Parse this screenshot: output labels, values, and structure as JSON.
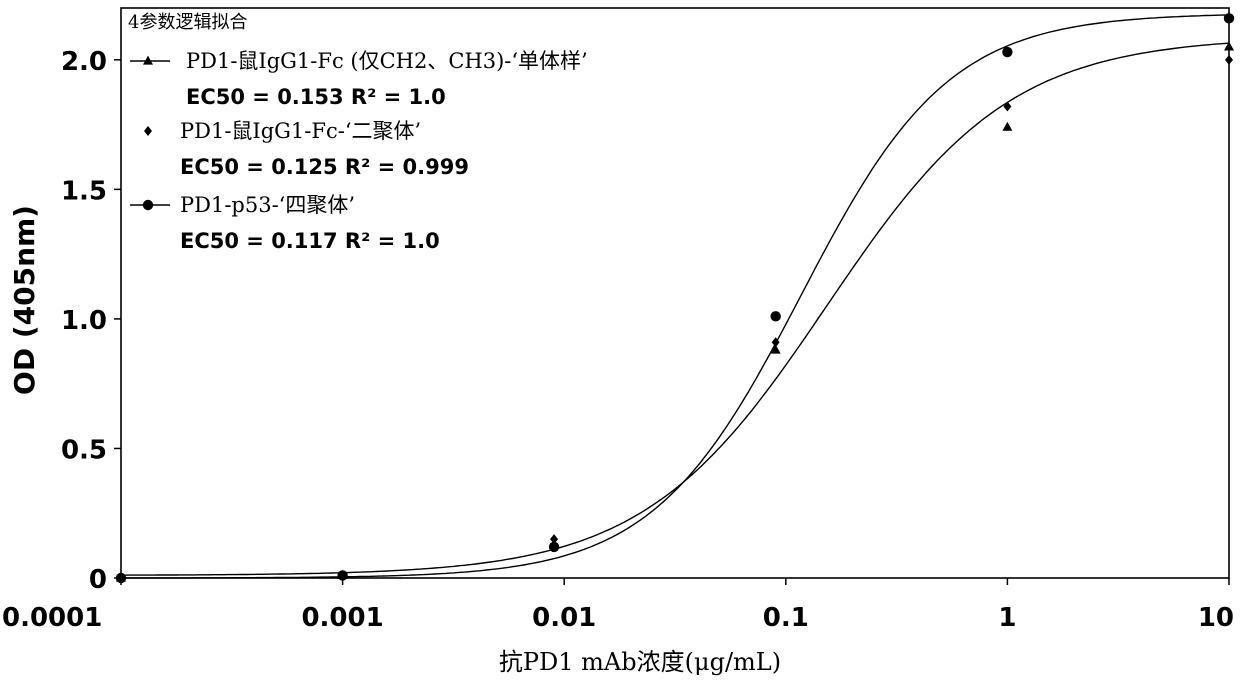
{
  "chart_data": {
    "type": "scatter",
    "title": "",
    "xlabel": "抗PD1 mAb浓度(μg/mL)",
    "ylabel": "OD (405nm)",
    "xscale": "log",
    "xlim": [
      0.0001,
      10
    ],
    "ylim": [
      0,
      2.2
    ],
    "xticks": [
      {
        "value": 0.0001,
        "label": "0.0001"
      },
      {
        "value": 0.001,
        "label": "0.001"
      },
      {
        "value": 0.01,
        "label": "0.01"
      },
      {
        "value": 0.1,
        "label": "0.1"
      },
      {
        "value": 1,
        "label": "1"
      },
      {
        "value": 10,
        "label": "10"
      }
    ],
    "yticks": [
      {
        "value": 0,
        "label": "0"
      },
      {
        "value": 0.5,
        "label": "0.5"
      },
      {
        "value": 1.0,
        "label": "1.0"
      },
      {
        "value": 1.5,
        "label": "1.5"
      },
      {
        "value": 2.0,
        "label": "2.0"
      }
    ],
    "grid": false,
    "legend": {
      "title": "4参数逻辑拟合",
      "placement": "top-left"
    },
    "series": [
      {
        "name": "PD1-鼠IgG1-Fc (仅CH2、CH3)-‘单体样’",
        "stat": "EC50 = 0.153 R² = 1.0",
        "marker": "triangle",
        "fit": {
          "bottom": 0.01,
          "top": 2.09,
          "ec50": 0.153,
          "hill": 1.05
        },
        "x": [
          0.0001,
          0.001,
          0.009,
          0.09,
          1,
          11
        ],
        "y": [
          0.0,
          0.01,
          0.13,
          0.88,
          1.74,
          2.05
        ]
      },
      {
        "name": "PD1-鼠IgG1-Fc-‘二聚体’",
        "stat": "EC50 = 0.125 R² = 0.999",
        "marker": "diamond",
        "fit": null,
        "x": [
          0.0001,
          0.001,
          0.009,
          0.09,
          1,
          11
        ],
        "y": [
          0.0,
          0.01,
          0.15,
          0.91,
          1.82,
          2.0
        ]
      },
      {
        "name": "PD1-p53-‘四聚体’",
        "stat": "EC50 = 0.117 R² = 1.0",
        "marker": "circle",
        "fit": {
          "bottom": 0.0,
          "top": 2.18,
          "ec50": 0.117,
          "hill": 1.3
        },
        "x": [
          0.0001,
          0.001,
          0.009,
          0.09,
          1,
          11
        ],
        "y": [
          0.0,
          0.01,
          0.12,
          1.01,
          2.03,
          2.16
        ]
      }
    ]
  }
}
